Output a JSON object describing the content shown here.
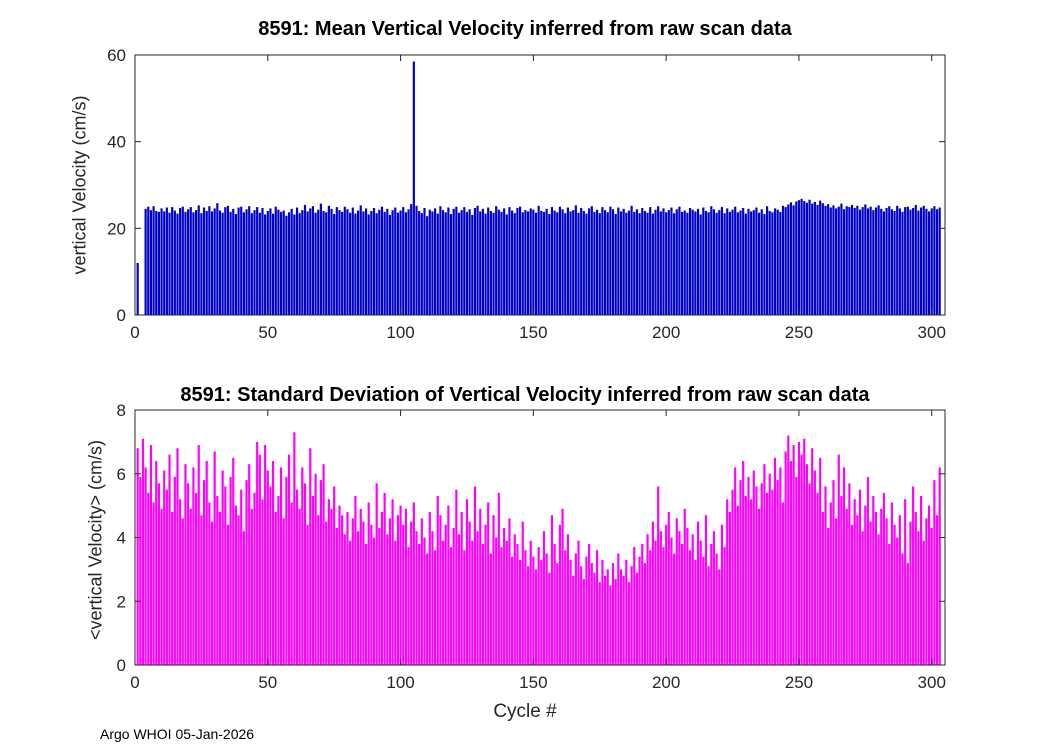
{
  "figure": {
    "footer": "Argo WHOI 05-Jan-2026"
  },
  "chart_data": [
    {
      "type": "bar",
      "title": "8591: Mean Vertical Velocity inferred from raw scan data",
      "ylabel": "vertical Velocity (cm/s)",
      "xlabel": "",
      "bar_color": "#0000cc",
      "axis_color": "#262626",
      "grid": false,
      "legend": "none",
      "xlim": [
        0,
        305
      ],
      "ylim": [
        0,
        60
      ],
      "xticks": [
        0,
        50,
        100,
        150,
        200,
        250,
        300
      ],
      "yticks": [
        0,
        20,
        40,
        60
      ],
      "x_start": 1,
      "values": [
        12.0,
        0,
        0,
        24.5,
        25.0,
        24.2,
        25.1,
        24.0,
        23.8,
        24.6,
        23.9,
        24.8,
        23.6,
        24.9,
        24.1,
        23.4,
        24.7,
        25.0,
        23.8,
        24.4,
        24.9,
        23.7,
        24.2,
        25.3,
        23.5,
        24.8,
        24.0,
        25.1,
        23.9,
        24.6,
        25.8,
        24.1,
        23.6,
        24.9,
        25.2,
        23.8,
        24.5,
        23.3,
        24.8,
        25.0,
        23.7,
        24.4,
        25.1,
        23.5,
        24.2,
        24.9,
        23.6,
        24.7,
        23.2,
        24.0,
        24.6,
        23.4,
        25.0,
        24.3,
        23.8,
        24.1,
        22.9,
        23.7,
        24.5,
        23.2,
        24.8,
        23.5,
        24.2,
        25.4,
        23.9,
        24.6,
        25.1,
        23.6,
        24.3,
        25.7,
        24.0,
        23.7,
        25.2,
        24.5,
        23.3,
        24.9,
        24.2,
        23.8,
        25.0,
        24.4,
        23.6,
        24.8,
        23.4,
        24.1,
        25.3,
        23.9,
        24.6,
        23.2,
        24.0,
        24.7,
        23.5,
        24.3,
        25.0,
        23.8,
        24.5,
        23.1,
        24.2,
        24.8,
        23.6,
        24.1,
        24.9,
        23.7,
        24.4,
        25.6,
        58.5,
        25.2,
        24.0,
        23.5,
        24.7,
        22.8,
        24.3,
        23.9,
        24.6,
        23.4,
        25.1,
        24.2,
        23.7,
        24.8,
        23.3,
        24.5,
        25.0,
        23.6,
        24.2,
        24.9,
        23.8,
        24.4,
        23.1,
        24.7,
        25.2,
        23.9,
        24.5,
        23.4,
        24.8,
        24.0,
        23.6,
        25.1,
        24.3,
        23.8,
        24.6,
        23.2,
        24.9,
        24.1,
        23.5,
        24.7,
        25.0,
        23.7,
        24.2,
        23.9,
        24.6,
        24.3,
        23.6,
        25.2,
        24.0,
        23.8,
        24.5,
        23.3,
        24.9,
        24.1,
        23.7,
        25.0,
        24.4,
        23.5,
        24.8,
        23.9,
        24.2,
        25.3,
        23.6,
        24.7,
        24.0,
        23.4,
        24.6,
        25.1,
        23.8,
        24.3,
        23.5,
        24.9,
        24.2,
        23.7,
        25.0,
        24.4,
        23.3,
        24.8,
        23.9,
        24.5,
        23.6,
        24.1,
        25.2,
        23.8,
        24.4,
        23.5,
        24.7,
        24.0,
        23.6,
        24.9,
        23.4,
        24.3,
        25.1,
        23.9,
        24.6,
        23.7,
        24.2,
        24.8,
        23.5,
        24.4,
        25.0,
        23.8,
        24.1,
        23.6,
        24.7,
        24.3,
        23.9,
        24.5,
        23.2,
        24.8,
        24.0,
        23.7,
        25.1,
        24.4,
        23.6,
        24.2,
        24.9,
        23.5,
        24.6,
        23.8,
        24.3,
        25.0,
        23.7,
        24.1,
        24.7,
        23.4,
        24.5,
        23.9,
        24.2,
        24.8,
        23.6,
        24.4,
        23.3,
        25.1,
        24.0,
        23.7,
        24.6,
        24.3,
        23.8,
        25.2,
        24.9,
        25.5,
        26.0,
        25.3,
        26.2,
        26.5,
        26.8,
        26.3,
        25.9,
        26.6,
        25.7,
        26.1,
        25.4,
        26.4,
        25.8,
        25.2,
        25.6,
        24.8,
        25.3,
        24.6,
        25.0,
        25.7,
        24.4,
        25.1,
        24.9,
        25.4,
        24.7,
        25.2,
        24.3,
        24.9,
        25.5,
        24.6,
        25.0,
        24.2,
        24.8,
        25.3,
        24.5,
        23.9,
        24.7,
        25.1,
        24.4,
        24.0,
        25.2,
        24.6,
        23.8,
        24.9,
        25.0,
        24.3,
        24.7,
        25.4,
        24.1,
        24.8,
        25.2,
        24.5,
        23.9,
        24.6,
        25.1,
        24.4,
        24.8
      ]
    },
    {
      "type": "bar",
      "title": "8591: Standard Deviation of Vertical Velocity inferred from raw scan data",
      "ylabel": "<vertical Velocity> (cm/s)",
      "xlabel": "Cycle #",
      "bar_color": "#ff00ff",
      "axis_color": "#262626",
      "grid": false,
      "legend": "none",
      "xlim": [
        0,
        305
      ],
      "ylim": [
        0,
        8
      ],
      "xticks": [
        0,
        50,
        100,
        150,
        200,
        250,
        300
      ],
      "yticks": [
        0,
        2,
        4,
        6,
        8
      ],
      "x_start": 1,
      "values": [
        6.8,
        5.9,
        7.1,
        6.2,
        5.4,
        6.9,
        5.1,
        6.4,
        5.7,
        4.9,
        6.1,
        5.5,
        6.6,
        4.8,
        5.9,
        6.8,
        5.2,
        4.6,
        6.3,
        5.7,
        4.9,
        6.2,
        5.4,
        6.9,
        4.7,
        5.8,
        6.4,
        5.1,
        4.5,
        6.7,
        5.3,
        4.8,
        6.1,
        5.6,
        4.4,
        5.9,
        6.5,
        5.0,
        4.7,
        5.5,
        4.2,
        5.8,
        6.3,
        4.9,
        5.4,
        7.0,
        6.6,
        5.2,
        6.9,
        6.1,
        5.6,
        6.4,
        4.8,
        5.3,
        6.2,
        4.6,
        5.9,
        6.6,
        5.1,
        7.3,
        5.5,
        4.9,
        6.2,
        5.7,
        4.4,
        6.8,
        5.3,
        6.0,
        4.7,
        5.8,
        6.3,
        4.5,
        5.2,
        4.9,
        5.6,
        4.3,
        5.0,
        4.7,
        4.1,
        4.8,
        3.9,
        4.6,
        5.3,
        4.2,
        4.9,
        4.5,
        3.8,
        5.1,
        4.4,
        4.0,
        5.7,
        4.3,
        4.8,
        5.4,
        4.1,
        4.6,
        5.2,
        3.9,
        4.7,
        5.0,
        4.4,
        4.9,
        3.7,
        4.5,
        5.1,
        4.2,
        3.8,
        4.6,
        4.0,
        3.5,
        4.8,
        4.2,
        3.6,
        5.3,
        4.7,
        3.9,
        4.4,
        5.0,
        3.7,
        4.3,
        5.5,
        4.1,
        4.8,
        3.6,
        5.2,
        4.5,
        3.9,
        5.6,
        4.2,
        4.9,
        3.8,
        4.4,
        5.1,
        3.5,
        4.7,
        4.0,
        5.4,
        3.7,
        4.3,
        3.9,
        4.6,
        3.4,
        4.1,
        3.8,
        3.3,
        4.5,
        3.6,
        3.1,
        3.9,
        3.4,
        3.0,
        3.7,
        3.3,
        4.2,
        3.5,
        2.9,
        4.7,
        3.8,
        3.2,
        4.4,
        4.9,
        3.6,
        4.1,
        3.3,
        2.8,
        3.5,
        3.9,
        3.1,
        2.7,
        3.4,
        3.8,
        3.2,
        2.9,
        3.6,
        2.6,
        3.3,
        2.8,
        3.0,
        2.5,
        3.2,
        2.7,
        3.5,
        3.0,
        2.8,
        3.3,
        2.6,
        3.1,
        3.7,
        2.9,
        3.4,
        3.8,
        3.2,
        4.1,
        3.6,
        4.5,
        3.9,
        5.6,
        4.2,
        3.7,
        4.4,
        4.8,
        4.0,
        3.5,
        4.6,
        4.2,
        3.8,
        4.9,
        4.3,
        3.6,
        4.1,
        3.3,
        4.5,
        3.9,
        3.4,
        4.7,
        3.1,
        3.8,
        4.2,
        3.5,
        3.0,
        4.4,
        3.7,
        5.2,
        4.8,
        5.5,
        6.2,
        5.0,
        5.8,
        6.4,
        5.3,
        5.9,
        5.2,
        6.1,
        5.6,
        4.9,
        5.7,
        6.3,
        5.4,
        6.0,
        5.5,
        6.5,
        5.8,
        6.2,
        5.1,
        6.7,
        7.2,
        6.4,
        6.9,
        5.9,
        7.0,
        6.6,
        7.1,
        6.3,
        5.7,
        6.8,
        6.1,
        5.4,
        6.5,
        4.8,
        5.6,
        4.3,
        5.1,
        5.8,
        4.6,
        6.6,
        5.3,
        6.2,
        4.9,
        5.7,
        4.4,
        5.2,
        4.7,
        5.5,
        4.2,
        5.0,
        5.9,
        4.5,
        5.3,
        4.8,
        4.1,
        4.9,
        5.4,
        4.6,
        3.8,
        5.1,
        4.4,
        4.0,
        4.7,
        3.5,
        5.2,
        3.2,
        4.5,
        5.6,
        4.8,
        4.2,
        5.3,
        3.9,
        4.6,
        5.0,
        4.3,
        5.8,
        4.7,
        6.2
      ]
    }
  ]
}
